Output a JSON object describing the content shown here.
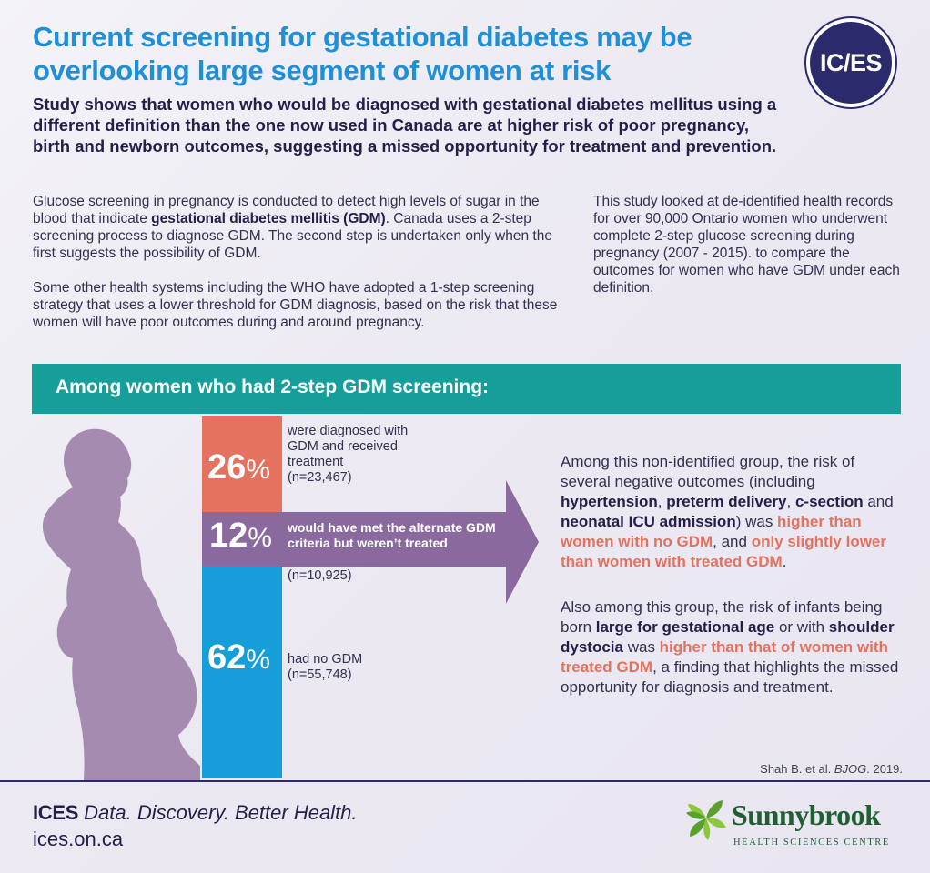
{
  "header": {
    "title": "Current screening for gestational diabetes may be overlooking large segment of women at risk",
    "logo_text": "IC/ES",
    "subtitle": "Study shows that women who would be diagnosed with gestational diabetes mellitus using a different definition than the one now used in Canada are at higher risk of poor pregnancy, birth and newborn outcomes, suggesting a missed opportunity for treatment and prevention."
  },
  "intro": {
    "para1_before": "Glucose screening in pregnancy  is conducted to detect high levels of sugar in the blood that indicate ",
    "para1_bold": "gestational diabetes mellitis (GDM)",
    "para1_after": ". Canada uses a 2-step screening process to diagnose GDM. The second step is undertaken only when the first suggests the possibility of GDM.",
    "para2": "Some other health systems including the WHO have adopted a 1-step screening strategy that uses a lower threshold for GDM diagnosis, based on the risk that these women will have poor outcomes during and around pregnancy.",
    "para3": "This study looked at de-identified health records for over 90,000 Ontario women who underwent complete 2-step glucose screening during pregnancy (2007 - 2015). to compare the outcomes for women who have GDM under each definition."
  },
  "banner": {
    "heading": "Among women who had 2-step GDM screening:"
  },
  "stats": {
    "treated": {
      "value": 26,
      "pct_num": "26",
      "pct_sign": "%",
      "desc": "were diagnosed with GDM and received treatment",
      "n": "(n=23,467)"
    },
    "untreated": {
      "value": 12,
      "pct_num": "12",
      "pct_sign": "%",
      "desc": "would have met the alternate GDM criteria but weren’t treated",
      "n": "(n=10,925)"
    },
    "none": {
      "value": 62,
      "pct_num": "62",
      "pct_sign": "%",
      "desc": "had no GDM",
      "n": "(n=55,748)"
    }
  },
  "findings": {
    "f1_a": "Among this non-identified group, the risk of several negative outcomes (including ",
    "f1_b1": "hypertension",
    "f1_c1": ", ",
    "f1_b2": "preterm delivery",
    "f1_c2": ", ",
    "f1_b3": "c-section",
    "f1_c3": " and ",
    "f1_b4": "neonatal ICU admission",
    "f1_c4": ") was ",
    "f1_hl1": "higher than women with no GDM",
    "f1_c5": ", and ",
    "f1_hl2": "only slightly lower than women with treated GDM",
    "f1_c6": ".",
    "f2_a": "Also among this group, the risk of infants being born ",
    "f2_b1": "large for gestational age",
    "f2_c1": " or with ",
    "f2_b2": "shoulder dystocia",
    "f2_c2": " was ",
    "f2_hl1": "higher than that of women with treated GDM",
    "f2_c3": ", a finding that highlights the missed opportunity for diagnosis and treatment."
  },
  "citation": {
    "before": "Shah B. et al. ",
    "journal": "BJOG",
    "after": ". 2019."
  },
  "footer": {
    "brand": "ICES",
    "tagline": "Data. Discovery. Better Health.",
    "url": "ices.on.ca",
    "partner_name": "Sunnybrook",
    "partner_sub": "HEALTH SCIENCES CENTRE"
  },
  "colors": {
    "title_blue": "#1e8fd9",
    "navy": "#2b2a6a",
    "teal": "#169e9a",
    "coral": "#e4725f",
    "purple": "#8a6a9e",
    "blue": "#169ed8",
    "silhouette": "#a58bb0",
    "sunnybrook_green": "#1f5f33"
  }
}
